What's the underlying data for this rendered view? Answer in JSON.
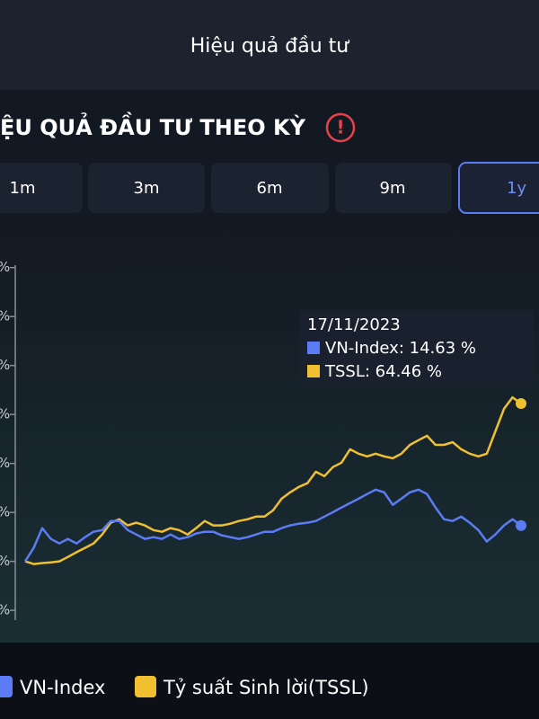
{
  "header": {
    "title": "Hiệu quả đầu tư"
  },
  "section": {
    "title": "ỆU QUẢ ĐẦU TƯ THEO KỲ",
    "icon": "!"
  },
  "tabs": {
    "labels": [
      "1m",
      "3m",
      "6m",
      "9m",
      "1y"
    ],
    "selected": 4
  },
  "chart_data": {
    "type": "line",
    "ylim": [
      -24,
      121
    ],
    "yticks": [
      {
        "value": -20,
        "label": "%"
      },
      {
        "value": 0,
        "label": "%"
      },
      {
        "value": 20,
        "label": "%"
      },
      {
        "value": 40,
        "label": "%"
      },
      {
        "value": 60,
        "label": "%"
      },
      {
        "value": 80,
        "label": "%"
      },
      {
        "value": 100,
        "label": "%"
      },
      {
        "value": 120,
        "label": "%"
      }
    ],
    "series": [
      {
        "name": "VN-Index",
        "color": "#5b7cf5",
        "values": [
          0,
          5.5,
          13.6,
          9.2,
          7.3,
          9.2,
          7.3,
          9.9,
          12.1,
          12.8,
          16.5,
          16.5,
          12.8,
          11.0,
          9.2,
          9.9,
          9.2,
          11.0,
          9.2,
          9.9,
          11.4,
          12.1,
          12.1,
          10.6,
          9.9,
          9.2,
          9.9,
          11.0,
          12.1,
          12.1,
          13.6,
          14.7,
          15.4,
          15.8,
          16.5,
          18.3,
          20.1,
          22.0,
          23.8,
          25.6,
          27.5,
          29.3,
          28.2,
          23.1,
          25.6,
          28.2,
          29.3,
          27.5,
          22.0,
          17.2,
          16.5,
          18.3,
          15.8,
          12.8,
          8.1,
          11.0,
          14.7,
          17.2,
          14.63
        ]
      },
      {
        "name": "Tỷ suất Sinh lời(TSSL)",
        "color": "#f0c030",
        "values": [
          0,
          -1.1,
          -0.7,
          -0.4,
          0,
          1.8,
          3.7,
          5.5,
          7.3,
          11.0,
          15.8,
          17.2,
          14.7,
          15.8,
          14.7,
          12.8,
          12.1,
          13.6,
          12.8,
          11.0,
          13.6,
          16.5,
          14.7,
          14.7,
          15.4,
          16.5,
          17.2,
          18.3,
          18.3,
          20.9,
          25.6,
          28.2,
          30.4,
          31.9,
          36.6,
          34.8,
          38.5,
          40.3,
          45.8,
          44.0,
          42.9,
          44.0,
          42.9,
          42.1,
          44.0,
          47.6,
          49.5,
          51.3,
          47.6,
          47.6,
          48.7,
          45.8,
          44.0,
          42.9,
          44.0,
          53.1,
          62.3,
          67.0,
          64.46
        ]
      }
    ],
    "tooltip": {
      "date": "17/11/2023",
      "lines": [
        "VN-Index: 14.63 %",
        "TSSL: 64.46 %"
      ]
    }
  }
}
